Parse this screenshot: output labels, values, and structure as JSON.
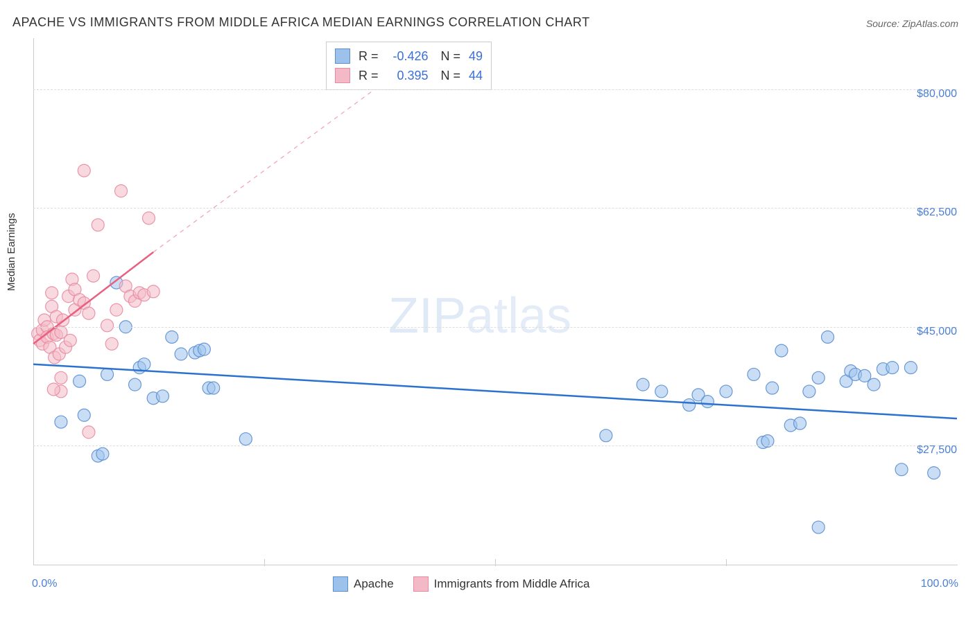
{
  "title": "APACHE VS IMMIGRANTS FROM MIDDLE AFRICA MEDIAN EARNINGS CORRELATION CHART",
  "source": "Source: ZipAtlas.com",
  "watermark_zip": "ZIP",
  "watermark_atlas": "atlas",
  "ylabel": "Median Earnings",
  "chart": {
    "type": "scatter",
    "xlim": [
      0,
      100
    ],
    "ylim": [
      10000,
      87500
    ],
    "xtick_positions": [
      0,
      25,
      50,
      75,
      100
    ],
    "xtick_labels": [
      "0.0%",
      "",
      "",
      "",
      "100.0%"
    ],
    "ytick_positions": [
      27500,
      45000,
      62500,
      80000
    ],
    "ytick_labels": [
      "$27,500",
      "$45,000",
      "$62,500",
      "$80,000"
    ],
    "background_color": "#ffffff",
    "grid_color": "#dddddd",
    "axis_color": "#cccccc",
    "label_color": "#4a7fd6",
    "title_fontsize": 18,
    "label_fontsize": 15,
    "tick_fontsize": 16,
    "marker_radius": 9,
    "marker_opacity": 0.55,
    "marker_stroke_opacity": 0.9,
    "series": [
      {
        "name": "Apache",
        "fill_color": "#9cc2ec",
        "stroke_color": "#5b8ed1",
        "line_color": "#2b72d0",
        "line_width": 2.5,
        "trend": {
          "x1": 0,
          "y1": 39500,
          "x2": 100,
          "y2": 31500
        },
        "points": [
          [
            3,
            31000
          ],
          [
            5,
            37000
          ],
          [
            5.5,
            32000
          ],
          [
            7,
            26000
          ],
          [
            7.5,
            26300
          ],
          [
            8,
            38000
          ],
          [
            9,
            51500
          ],
          [
            10,
            45000
          ],
          [
            11,
            36500
          ],
          [
            11.5,
            39000
          ],
          [
            12,
            39500
          ],
          [
            13,
            34500
          ],
          [
            14,
            34800
          ],
          [
            15,
            43500
          ],
          [
            16,
            41000
          ],
          [
            17.5,
            41200
          ],
          [
            18,
            41500
          ],
          [
            18.5,
            41700
          ],
          [
            19,
            36000
          ],
          [
            19.5,
            36000
          ],
          [
            23,
            28500
          ],
          [
            62,
            29000
          ],
          [
            66,
            36500
          ],
          [
            68,
            35500
          ],
          [
            71,
            33500
          ],
          [
            72,
            35000
          ],
          [
            73,
            34000
          ],
          [
            75,
            35500
          ],
          [
            78,
            38000
          ],
          [
            79,
            28000
          ],
          [
            79.5,
            28200
          ],
          [
            80,
            36000
          ],
          [
            81,
            41500
          ],
          [
            82,
            30500
          ],
          [
            83,
            30800
          ],
          [
            84,
            35500
          ],
          [
            85,
            37500
          ],
          [
            86,
            43500
          ],
          [
            88,
            37000
          ],
          [
            88.5,
            38500
          ],
          [
            89,
            38000
          ],
          [
            90,
            37800
          ],
          [
            91,
            36500
          ],
          [
            92,
            38800
          ],
          [
            93,
            39000
          ],
          [
            94,
            24000
          ],
          [
            95,
            39000
          ],
          [
            97.5,
            23500
          ],
          [
            85,
            15500
          ]
        ]
      },
      {
        "name": "Immigrants from Middle Africa",
        "fill_color": "#f4b9c6",
        "stroke_color": "#e88aa0",
        "line_color": "#e8607f",
        "line_width": 2.5,
        "trend": {
          "x1": 0,
          "y1": 42500,
          "x2": 13,
          "y2": 56000
        },
        "trend_dash": {
          "x1": 13,
          "y1": 56000,
          "x2": 43,
          "y2": 86000
        },
        "points": [
          [
            0.5,
            44000
          ],
          [
            0.7,
            43000
          ],
          [
            1,
            44500
          ],
          [
            1,
            42500
          ],
          [
            1.2,
            46000
          ],
          [
            1.5,
            45000
          ],
          [
            1.5,
            43500
          ],
          [
            1.8,
            42000
          ],
          [
            2,
            50000
          ],
          [
            2,
            48000
          ],
          [
            2.2,
            44000
          ],
          [
            2.3,
            40500
          ],
          [
            2.5,
            46500
          ],
          [
            2.5,
            43800
          ],
          [
            2.8,
            41000
          ],
          [
            3,
            44200
          ],
          [
            3,
            37500
          ],
          [
            3.2,
            46000
          ],
          [
            3.5,
            42000
          ],
          [
            3.8,
            49500
          ],
          [
            4,
            43000
          ],
          [
            4.2,
            52000
          ],
          [
            4.5,
            47500
          ],
          [
            4.5,
            50500
          ],
          [
            5,
            49000
          ],
          [
            5.5,
            48500
          ],
          [
            5.5,
            68000
          ],
          [
            6,
            47000
          ],
          [
            6,
            29500
          ],
          [
            6.5,
            52500
          ],
          [
            7,
            60000
          ],
          [
            8,
            45200
          ],
          [
            8.5,
            42500
          ],
          [
            9,
            47500
          ],
          [
            9.5,
            65000
          ],
          [
            10,
            51000
          ],
          [
            10.5,
            49500
          ],
          [
            11,
            48800
          ],
          [
            11.5,
            50000
          ],
          [
            12,
            49700
          ],
          [
            12.5,
            61000
          ],
          [
            13,
            50200
          ],
          [
            3,
            35500
          ],
          [
            2.2,
            35800
          ]
        ]
      }
    ]
  },
  "legend_top": {
    "rows": [
      {
        "swatch_fill": "#9cc2ec",
        "swatch_stroke": "#5b8ed1",
        "r_label": "R",
        "r_val": "-0.426",
        "n_label": "N",
        "n_val": "49"
      },
      {
        "swatch_fill": "#f4b9c6",
        "swatch_stroke": "#e88aa0",
        "r_label": "R",
        "r_val": "0.395",
        "n_label": "N",
        "n_val": "44"
      }
    ]
  },
  "legend_bottom": {
    "items": [
      {
        "swatch_fill": "#9cc2ec",
        "swatch_stroke": "#5b8ed1",
        "label": "Apache"
      },
      {
        "swatch_fill": "#f4b9c6",
        "swatch_stroke": "#e88aa0",
        "label": "Immigrants from Middle Africa"
      }
    ]
  }
}
